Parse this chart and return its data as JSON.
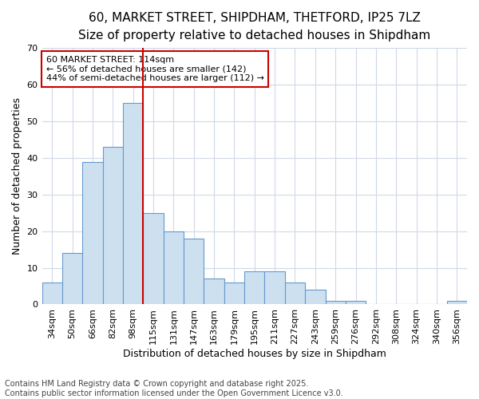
{
  "title_line1": "60, MARKET STREET, SHIPDHAM, THETFORD, IP25 7LZ",
  "title_line2": "Size of property relative to detached houses in Shipdham",
  "xlabel": "Distribution of detached houses by size in Shipdham",
  "ylabel": "Number of detached properties",
  "categories": [
    "34sqm",
    "50sqm",
    "66sqm",
    "82sqm",
    "98sqm",
    "115sqm",
    "131sqm",
    "147sqm",
    "163sqm",
    "179sqm",
    "195sqm",
    "211sqm",
    "227sqm",
    "243sqm",
    "259sqm",
    "276sqm",
    "292sqm",
    "308sqm",
    "324sqm",
    "340sqm",
    "356sqm"
  ],
  "values": [
    6,
    14,
    39,
    43,
    55,
    25,
    20,
    18,
    7,
    6,
    9,
    9,
    6,
    4,
    1,
    1,
    0,
    0,
    0,
    0,
    1
  ],
  "bar_color": "#cce0f0",
  "bar_edge_color": "#6699cc",
  "vline_color": "#cc0000",
  "annotation_text": "60 MARKET STREET: 114sqm\n← 56% of detached houses are smaller (142)\n44% of semi-detached houses are larger (112) →",
  "annotation_box_color": "#ffffff",
  "annotation_box_edge": "#cc0000",
  "ylim": [
    0,
    70
  ],
  "yticks": [
    0,
    10,
    20,
    30,
    40,
    50,
    60,
    70
  ],
  "fig_background": "#ffffff",
  "plot_background": "#ffffff",
  "grid_color": "#d0d8e8",
  "footer_text": "Contains HM Land Registry data © Crown copyright and database right 2025.\nContains public sector information licensed under the Open Government Licence v3.0.",
  "title_fontsize": 11,
  "subtitle_fontsize": 10,
  "axis_label_fontsize": 9,
  "tick_fontsize": 8,
  "annotation_fontsize": 8,
  "footer_fontsize": 7
}
